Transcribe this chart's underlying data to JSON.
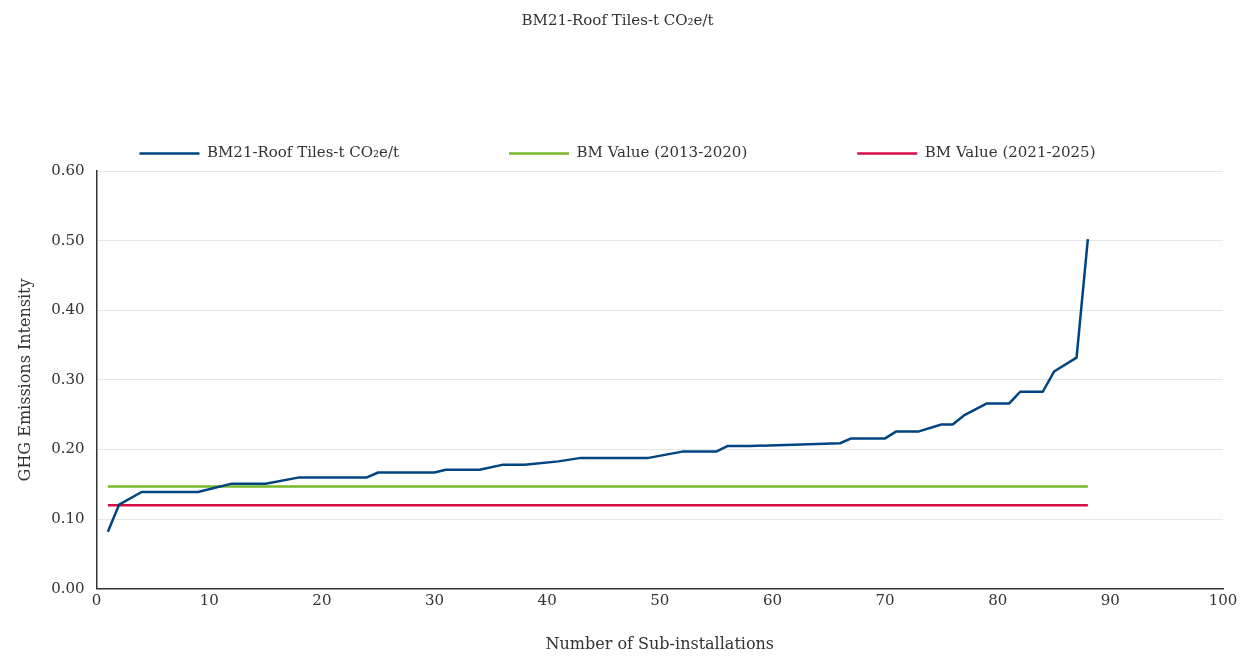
{
  "chart_data": {
    "type": "line",
    "title": "BM21-Roof Tiles-t CO₂e/t",
    "xlabel": "Number of Sub-installations",
    "ylabel": "GHG Emissions Intensity",
    "xlim": [
      0,
      100
    ],
    "xticks": [
      0,
      10,
      20,
      30,
      40,
      50,
      60,
      70,
      80,
      90,
      100
    ],
    "ylim": [
      0,
      0.6
    ],
    "yticks": [
      {
        "value": 0,
        "label": "0.00"
      },
      {
        "value": 0.1,
        "label": "0.10"
      },
      {
        "value": 0.2,
        "label": "0.20"
      },
      {
        "value": 0.3,
        "label": "0.30"
      },
      {
        "value": 0.4,
        "label": "0.40"
      },
      {
        "value": 0.5,
        "label": "0.50"
      },
      {
        "value": 0.6,
        "label": "0.60"
      }
    ],
    "grid": "y",
    "legend": "top",
    "marker": "none",
    "line_style": "solid",
    "series": [
      {
        "name": "BM21-Roof Tiles-t CO₂e/t",
        "color": "#004481",
        "x": [
          1,
          2,
          4,
          9,
          12,
          15,
          18,
          24,
          25,
          30,
          31,
          34,
          36,
          38,
          41,
          43,
          49,
          52,
          55,
          56,
          58,
          66,
          67,
          70,
          71,
          73,
          75,
          76,
          77,
          79,
          81,
          82,
          84,
          85,
          87,
          88
        ],
        "values": [
          0.082,
          0.121,
          0.139,
          0.139,
          0.151,
          0.151,
          0.16,
          0.16,
          0.167,
          0.167,
          0.171,
          0.171,
          0.178,
          0.178,
          0.183,
          0.188,
          0.188,
          0.197,
          0.197,
          0.205,
          0.205,
          0.209,
          0.216,
          0.216,
          0.226,
          0.226,
          0.236,
          0.236,
          0.249,
          0.266,
          0.266,
          0.283,
          0.283,
          0.312,
          0.332,
          0.502
        ]
      },
      {
        "name": "BM Value (2013-2020)",
        "color": "#76b82a",
        "x": [
          1,
          88
        ],
        "values": [
          0.147,
          0.147
        ]
      },
      {
        "name": "BM Value (2021-2025)",
        "color": "#d50f44",
        "x": [
          1,
          88
        ],
        "values": [
          0.12,
          0.12
        ]
      }
    ]
  }
}
